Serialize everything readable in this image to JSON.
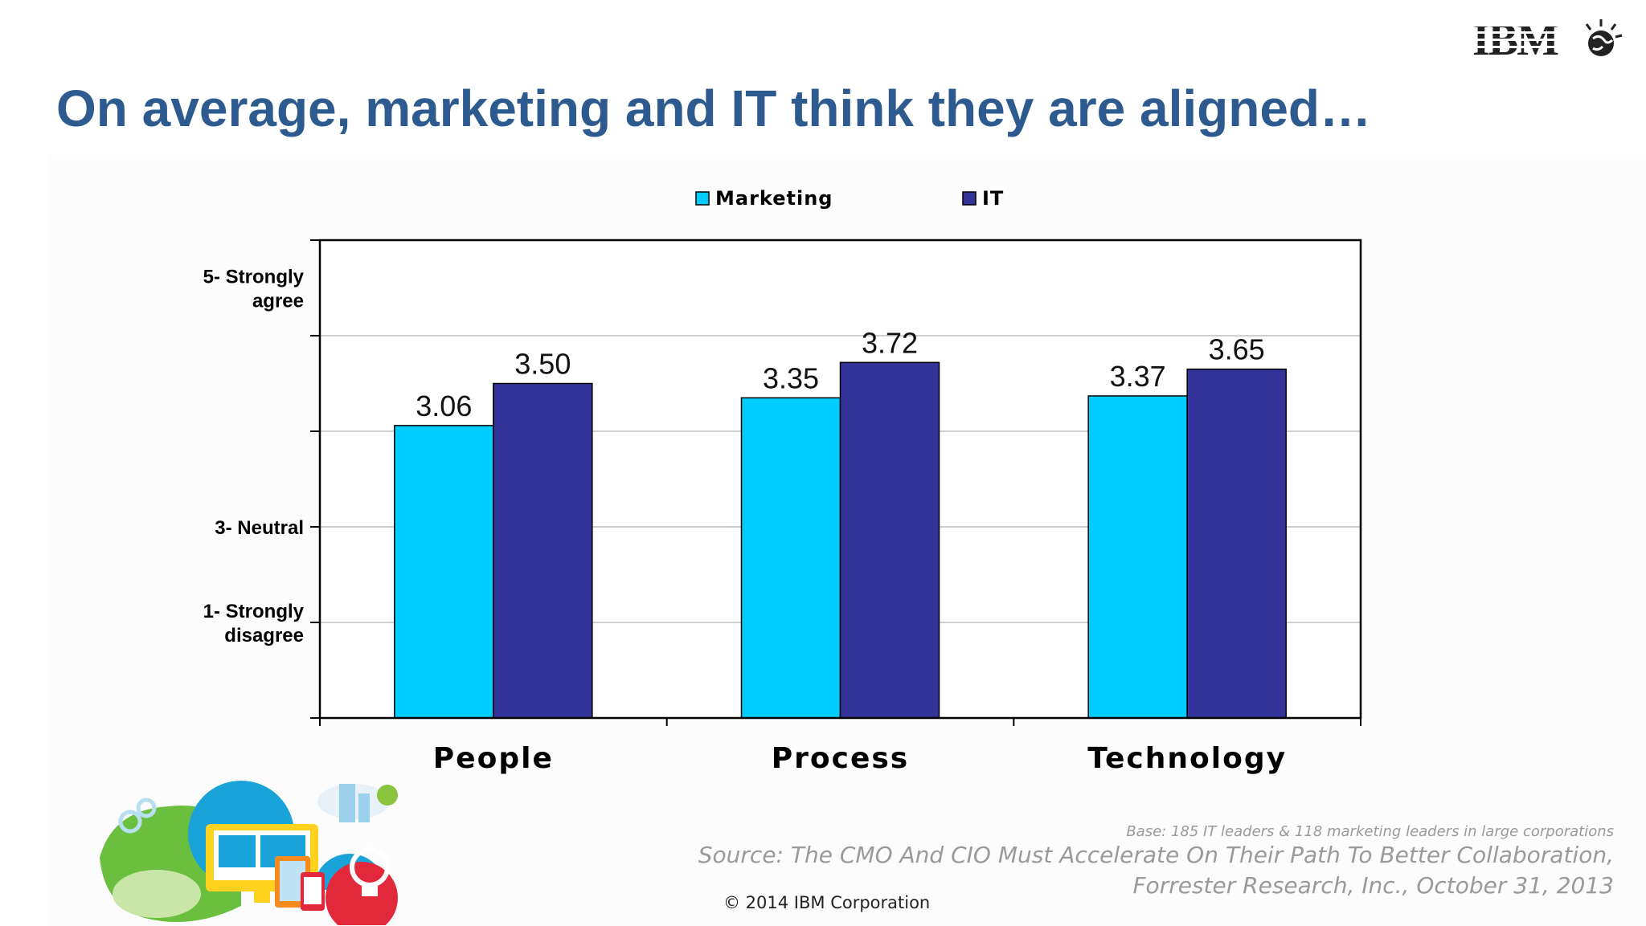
{
  "slide": {
    "title": "On average, marketing and IT think they are aligned…",
    "logo_text": "IBM",
    "base_note": "Base: 185 IT leaders & 118 marketing leaders in large corporations",
    "source_note": "Source: The CMO And CIO Must Accelerate On Their Path To Better Collaboration, Forrester Research, Inc., October 31, 2013",
    "copyright": "© 2014 IBM Corporation"
  },
  "colors": {
    "title": "#2e5b8f",
    "marketing": "#00ccff",
    "it": "#333399"
  },
  "chart_data": {
    "type": "bar",
    "categories": [
      "People",
      "Process",
      "Technology"
    ],
    "series": [
      {
        "name": "Marketing",
        "values": [
          3.06,
          3.35,
          3.37
        ],
        "labels": [
          "3.06",
          "3.35",
          "3.37"
        ],
        "color": "#00ccff"
      },
      {
        "name": "IT",
        "values": [
          3.5,
          3.72,
          3.65
        ],
        "labels": [
          "3.50",
          "3.72",
          "3.65"
        ],
        "color": "#333399"
      }
    ],
    "ylim": [
      0,
      5
    ],
    "y_tick_labels": [
      {
        "value": 4.5,
        "text": "5- Strongly agree",
        "lines": [
          "5- Strongly",
          "agree"
        ]
      },
      {
        "value": 2.0,
        "text": "3- Neutral",
        "lines": [
          "3- Neutral"
        ]
      },
      {
        "value": 1.0,
        "text": "1- Strongly disagree",
        "lines": [
          "1- Strongly",
          "disagree"
        ]
      }
    ],
    "title": "",
    "xlabel": "",
    "ylabel": "",
    "grid": true,
    "legend": "top-center"
  }
}
